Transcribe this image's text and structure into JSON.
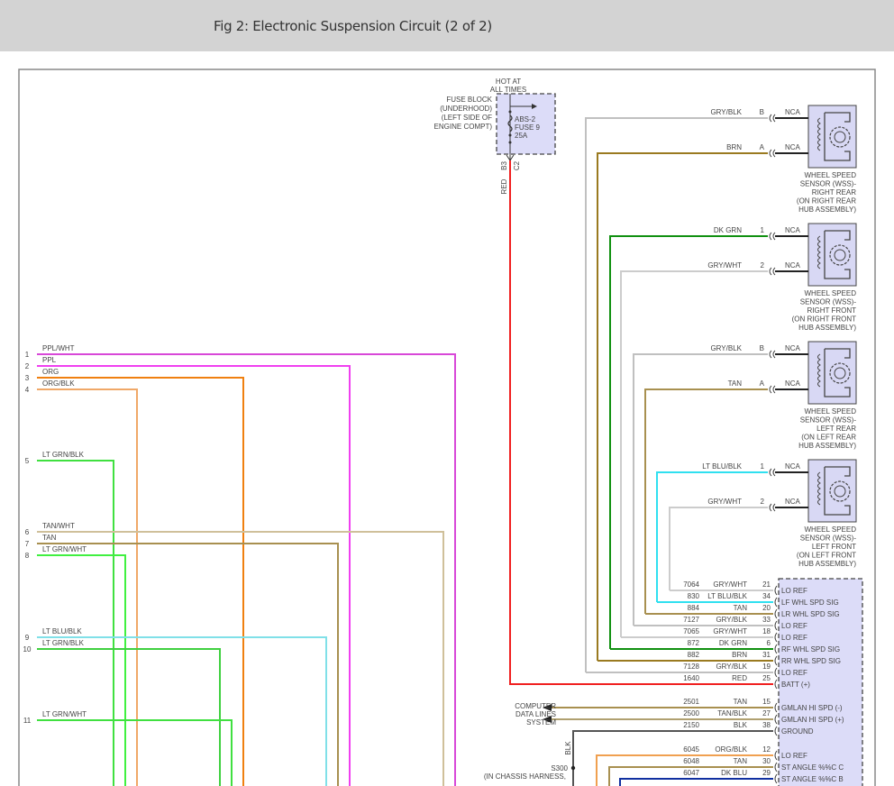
{
  "header": {
    "title": "Fig 2: Electronic Suspension Circuit (2 of 2)"
  },
  "left_connector": {
    "wires": [
      {
        "pin": "1",
        "label": "PPL/WHT",
        "color": "#d848d8"
      },
      {
        "pin": "2",
        "label": "PPL",
        "color": "#f040f0"
      },
      {
        "pin": "3",
        "label": "ORG",
        "color": "#f08010"
      },
      {
        "pin": "4",
        "label": "ORG/BLK",
        "color": "#f0a868"
      },
      {
        "pin": "5",
        "label": "LT GRN/BLK",
        "color": "#40e040"
      },
      {
        "pin": "6",
        "label": "TAN/WHT",
        "color": "#cfc09a"
      },
      {
        "pin": "7",
        "label": "TAN",
        "color": "#a89050"
      },
      {
        "pin": "8",
        "label": "LT GRN/WHT",
        "color": "#40f040"
      },
      {
        "pin": "9",
        "label": "LT BLU/BLK",
        "color": "#80e0e8"
      },
      {
        "pin": "10",
        "label": "LT GRN/BLK",
        "color": "#40d040"
      },
      {
        "pin": "11",
        "label": "LT GRN/WHT",
        "color": "#40e040"
      }
    ]
  },
  "fuse_block": {
    "hot_label": [
      "HOT AT",
      "ALL TIMES"
    ],
    "location_label": [
      "FUSE BLOCK",
      "(UNDERHOOD)",
      "(LEFT SIDE OF",
      "ENGINE COMPT)"
    ],
    "fuse_label": [
      "ABS-2",
      "FUSE 9",
      "25A"
    ],
    "pin_a": "B3",
    "pin_b": "C2",
    "wire": "RED",
    "fill": "#dcdcf8"
  },
  "sensors": [
    {
      "label": [
        "WHEEL SPEED",
        "SENSOR (WSS)-",
        "RIGHT REAR",
        "(ON RIGHT REAR",
        "HUB ASSEMBLY)"
      ],
      "pins": [
        {
          "pin": "B",
          "wire": "GRY/BLK",
          "nca": "NCA",
          "color": "#c0c0c0"
        },
        {
          "pin": "A",
          "wire": "BRN",
          "nca": "NCA",
          "color": "#9a7a20"
        }
      ]
    },
    {
      "label": [
        "WHEEL SPEED",
        "SENSOR (WSS)-",
        "RIGHT FRONT",
        "(ON RIGHT FRONT",
        "HUB ASSEMBLY)"
      ],
      "pins": [
        {
          "pin": "1",
          "wire": "DK GRN",
          "nca": "NCA",
          "color": "#109010"
        },
        {
          "pin": "2",
          "wire": "GRY/WHT",
          "nca": "NCA",
          "color": "#cccccc"
        }
      ]
    },
    {
      "label": [
        "WHEEL SPEED",
        "SENSOR (WSS)-",
        "LEFT REAR",
        "(ON LEFT REAR",
        "HUB ASSEMBLY)"
      ],
      "pins": [
        {
          "pin": "B",
          "wire": "GRY/BLK",
          "nca": "NCA",
          "color": "#c0c0c0"
        },
        {
          "pin": "A",
          "wire": "TAN",
          "nca": "NCA",
          "color": "#a89050"
        }
      ]
    },
    {
      "label": [
        "WHEEL SPEED",
        "SENSOR (WSS)-",
        "LEFT FRONT",
        "(ON LEFT FRONT",
        "HUB ASSEMBLY)"
      ],
      "pins": [
        {
          "pin": "1",
          "wire": "LT BLU/BLK",
          "nca": "NCA",
          "color": "#30e0f0"
        },
        {
          "pin": "2",
          "wire": "GRY/WHT",
          "nca": "NCA",
          "color": "#cccccc"
        }
      ]
    }
  ],
  "module": {
    "fill": "#dcdcf8",
    "pins": [
      {
        "circuit": "7064",
        "wire": "GRY/WHT",
        "pin": "21",
        "func": "LO REF",
        "color": "#cccccc"
      },
      {
        "circuit": "830",
        "wire": "LT BLU/BLK",
        "pin": "34",
        "func": "LF WHL SPD SIG",
        "color": "#30e0f0"
      },
      {
        "circuit": "884",
        "wire": "TAN",
        "pin": "20",
        "func": "LR WHL SPD SIG",
        "color": "#a89050"
      },
      {
        "circuit": "7127",
        "wire": "GRY/BLK",
        "pin": "33",
        "func": "LO REF",
        "color": "#c0c0c0"
      },
      {
        "circuit": "7065",
        "wire": "GRY/WHT",
        "pin": "18",
        "func": "LO REF",
        "color": "#cccccc"
      },
      {
        "circuit": "872",
        "wire": "DK GRN",
        "pin": "6",
        "func": "RF WHL SPD SIG",
        "color": "#109010"
      },
      {
        "circuit": "882",
        "wire": "BRN",
        "pin": "31",
        "func": "RR WHL SPD SIG",
        "color": "#9a7a20"
      },
      {
        "circuit": "7128",
        "wire": "GRY/BLK",
        "pin": "19",
        "func": "LO REF",
        "color": "#c0c0c0"
      },
      {
        "circuit": "1640",
        "wire": "RED",
        "pin": "25",
        "func": "BATT (+)",
        "color": "#f02020"
      },
      {
        "circuit": "2501",
        "wire": "TAN",
        "pin": "15",
        "func": "GMLAN HI SPD (-)",
        "color": "#a89050"
      },
      {
        "circuit": "2500",
        "wire": "TAN/BLK",
        "pin": "27",
        "func": "GMLAN HI SPD (+)",
        "color": "#b0a070"
      },
      {
        "circuit": "2150",
        "wire": "BLK",
        "pin": "38",
        "func": "GROUND",
        "color": "#555555"
      },
      {
        "circuit": "6045",
        "wire": "ORG/BLK",
        "pin": "12",
        "func": "LO REF",
        "color": "#f0a050"
      },
      {
        "circuit": "6048",
        "wire": "TAN",
        "pin": "30",
        "func": "ST ANGLE %%C C",
        "color": "#a89050"
      },
      {
        "circuit": "6047",
        "wire": "DK BLU",
        "pin": "29",
        "func": "ST ANGLE %%C B",
        "color": "#1030a0"
      }
    ]
  },
  "data_lines": {
    "label": [
      "COMPUTER",
      "DATA LINES",
      "SYSTEM"
    ]
  },
  "splice": {
    "name": "S300",
    "location": "(IN CHASSIS HARNESS,",
    "wire": "BLK"
  }
}
